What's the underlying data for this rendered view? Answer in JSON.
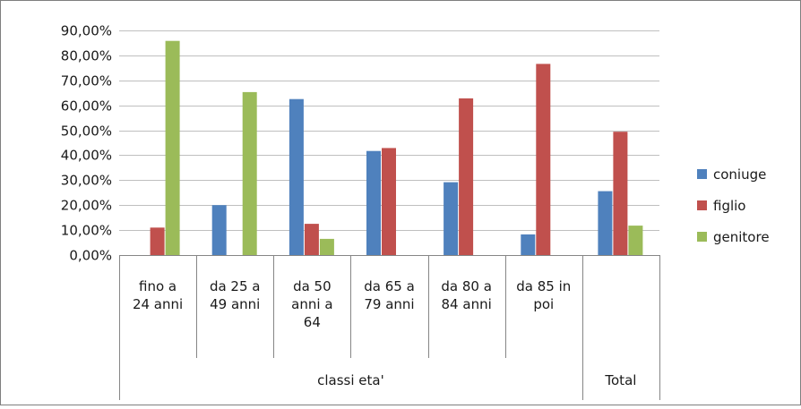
{
  "chart_data": {
    "type": "bar",
    "title": "",
    "xlabel": "",
    "ylabel": "",
    "ylim": [
      0,
      90
    ],
    "y_tick_values": [
      0,
      10,
      20,
      30,
      40,
      50,
      60,
      70,
      80,
      90
    ],
    "y_tick_labels": [
      "0,00%",
      "10,00%",
      "20,00%",
      "30,00%",
      "40,00%",
      "50,00%",
      "60,00%",
      "70,00%",
      "80,00%",
      "90,00%"
    ],
    "categories": [
      [
        "fino a",
        "24 anni"
      ],
      [
        "da 25 a",
        "49 anni"
      ],
      [
        "da 50",
        "anni a",
        "64"
      ],
      [
        "da 65 a",
        "79 anni"
      ],
      [
        "da 80 a",
        "84 anni"
      ],
      [
        "da 85 in",
        "poi"
      ],
      []
    ],
    "groups": [
      {
        "label": "classi eta'",
        "from": 0,
        "to": 5
      },
      {
        "label": "Total",
        "from": 6,
        "to": 6
      }
    ],
    "series": [
      {
        "name": "coniuge",
        "color": "#4f81bd",
        "values": [
          0,
          20.0,
          62.5,
          41.7,
          29.2,
          8.3,
          25.6
        ]
      },
      {
        "name": "figlio",
        "color": "#c0504d",
        "values": [
          11.0,
          0,
          12.5,
          42.9,
          62.8,
          76.6,
          49.4
        ]
      },
      {
        "name": "genitore",
        "color": "#9bbb59",
        "values": [
          85.8,
          65.3,
          6.5,
          0,
          0,
          0,
          11.8
        ]
      }
    ],
    "grid": true,
    "legend_position": "right"
  }
}
